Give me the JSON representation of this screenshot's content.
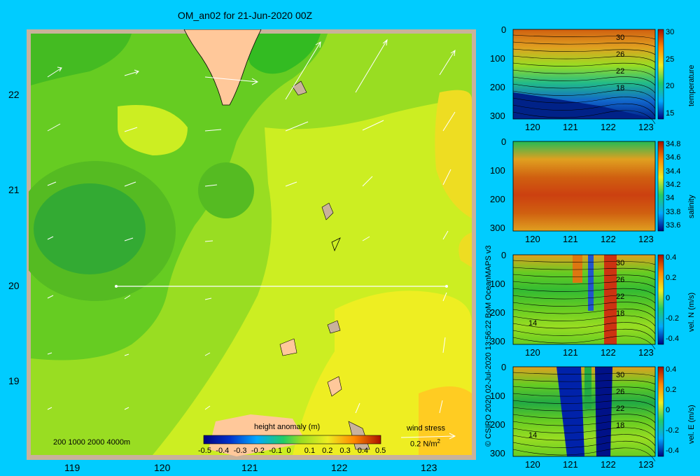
{
  "title": "OM_an02 for 21-Jun-2020 00Z",
  "copyright": "© CSIRO 2020   02-Jul-2020 13:56:22 BoM OceanMAPS v3",
  "map": {
    "lon_ticks": [
      "119",
      "120",
      "121",
      "122",
      "123"
    ],
    "lat_ticks": [
      "22",
      "21",
      "20",
      "19"
    ],
    "depth_scale": "200  1000  2000  4000m",
    "colorbar_title": "height anomaly (m)",
    "colorbar_ticks": [
      "-0.5",
      "-0.4",
      "-0.3",
      "-0.2",
      "-0.1",
      "0",
      "0.1",
      "0.2",
      "0.3",
      "0.4",
      "0.5"
    ],
    "wind_label": "wind stress",
    "wind_scale": "0.2 N/m",
    "wind_scale_sup": "2"
  },
  "section_x_ticks": [
    "120",
    "121",
    "122",
    "123"
  ],
  "section_y_ticks": [
    "0",
    "100",
    "200",
    "300"
  ],
  "panels": [
    {
      "id": "temperature",
      "label": "temperature",
      "cb_ticks": [
        "30",
        "25",
        "20",
        "15"
      ],
      "contour_labels": [
        "30",
        "26",
        "22",
        "18"
      ]
    },
    {
      "id": "salinity",
      "label": "salinity",
      "cb_ticks": [
        "34.8",
        "34.6",
        "34.4",
        "34.2",
        "34",
        "33.8",
        "33.6"
      ],
      "contour_labels": []
    },
    {
      "id": "vel-n",
      "label": "vel. N  (m/s)",
      "cb_ticks": [
        "0.4",
        "0.2",
        "0",
        "-0.2",
        "-0.4"
      ],
      "contour_labels": [
        "30",
        "26",
        "22",
        "18",
        "14"
      ]
    },
    {
      "id": "vel-e",
      "label": "vel. E  (m/s)",
      "cb_ticks": [
        "0.4",
        "0.2",
        "0",
        "-0.2",
        "-0.4"
      ],
      "contour_labels": [
        "30",
        "26",
        "22",
        "18",
        "14"
      ]
    }
  ],
  "colors": {
    "background": "#00ccff",
    "land": "#ffc89a",
    "shelf": "#c9b29b"
  }
}
